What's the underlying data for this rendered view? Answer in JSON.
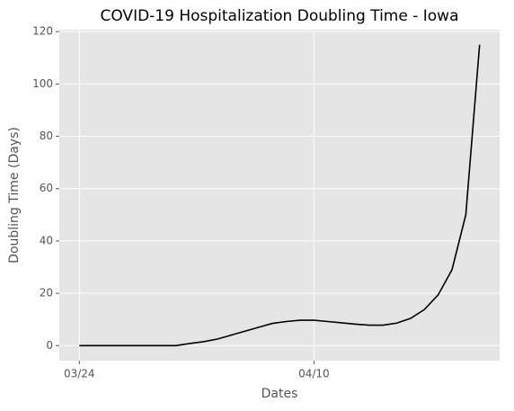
{
  "chart_data": {
    "type": "line",
    "title": "COVID-19 Hospitalization Doubling Time - Iowa",
    "x_label": "Dates",
    "y_label": "Doubling Time (Days)",
    "x": [
      0,
      1,
      2,
      3,
      4,
      5,
      6,
      7,
      8,
      9,
      10,
      11,
      12,
      13,
      14,
      15,
      16,
      17,
      18,
      19,
      20,
      21,
      22,
      23,
      24,
      25,
      26,
      27,
      28,
      29
    ],
    "series": [
      {
        "name": "Doubling Time",
        "color": "#000000",
        "values": [
          0,
          0,
          0,
          0,
          0,
          0,
          0,
          0,
          0.8,
          1.5,
          2.5,
          4,
          5.5,
          7,
          8.5,
          9.2,
          9.7,
          9.7,
          9.2,
          8.7,
          8.2,
          7.8,
          7.8,
          8.6,
          10.4,
          13.8,
          19.4,
          29,
          50,
          115
        ]
      }
    ],
    "xlim": [
      -1.45,
      30.45
    ],
    "xticks": [
      {
        "value": 0,
        "label": "03/24"
      },
      {
        "value": 17,
        "label": "04/10"
      }
    ],
    "ylim": [
      -5.75,
      120.75
    ],
    "yticks": [
      0,
      20,
      40,
      60,
      80,
      100,
      120
    ],
    "grid": true
  }
}
